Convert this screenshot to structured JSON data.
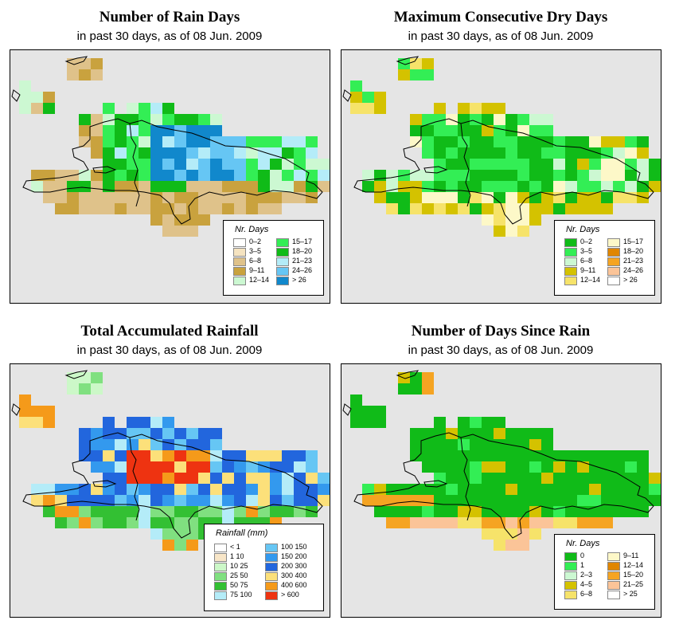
{
  "panels": [
    {
      "title": "Number of Rain Days",
      "subtitle": "in past 30 days, as of  08 Jun. 2009",
      "legend": {
        "title": "Nr. Days",
        "items": [
          {
            "label": "0–2",
            "color": "#ffffff"
          },
          {
            "label": "3–5",
            "color": "#f5e3c0"
          },
          {
            "label": "6–8",
            "color": "#dfc28a"
          },
          {
            "label": "9–11",
            "color": "#c9a23e"
          },
          {
            "label": "12–14",
            "color": "#ccf8d2"
          },
          {
            "label": "15–17",
            "color": "#33ee55"
          },
          {
            "label": "18–20",
            "color": "#10bb18"
          },
          {
            "label": "21–23",
            "color": "#b4ecf8"
          },
          {
            "label": "24–26",
            "color": "#66c6f4"
          },
          {
            "label": "> 26",
            "color": "#1188cc"
          }
        ]
      }
    },
    {
      "title": "Maximum Consecutive Dry Days",
      "subtitle": "in past 30 days, as of  08 Jun. 2009",
      "legend": {
        "title": "Nr. Days",
        "items": [
          {
            "label": "0–2",
            "color": "#10bb18"
          },
          {
            "label": "3–5",
            "color": "#33ee55"
          },
          {
            "label": "6–8",
            "color": "#ccf8d2"
          },
          {
            "label": "9–11",
            "color": "#d4c200"
          },
          {
            "label": "12–14",
            "color": "#f6e36a"
          },
          {
            "label": "15–17",
            "color": "#fdf8c8"
          },
          {
            "label": "18–20",
            "color": "#e08600"
          },
          {
            "label": "21–23",
            "color": "#f5a422"
          },
          {
            "label": "24–26",
            "color": "#fbc498"
          },
          {
            "label": "> 26",
            "color": "#ffffff"
          }
        ]
      }
    },
    {
      "title": "Total Accumulated Rainfall",
      "subtitle": "in past 30 days, as of  08 Jun. 2009",
      "legend": {
        "title": "Rainfall (mm)",
        "items": [
          {
            "label": "< 1",
            "color": "#ffffff"
          },
          {
            "label": "1    10",
            "color": "#f8e6c8"
          },
          {
            "label": "10    25",
            "color": "#ccf8c8"
          },
          {
            "label": "25    50",
            "color": "#80e080"
          },
          {
            "label": "50    75",
            "color": "#33c033"
          },
          {
            "label": "75   100",
            "color": "#b4ecf8"
          },
          {
            "label": "100   150",
            "color": "#66c6f4"
          },
          {
            "label": "150   200",
            "color": "#3399ee"
          },
          {
            "label": "200   300",
            "color": "#2266dd"
          },
          {
            "label": "300   400",
            "color": "#fce07a"
          },
          {
            "label": "400   600",
            "color": "#f59a1a"
          },
          {
            "label": "> 600",
            "color": "#ee3311"
          }
        ]
      }
    },
    {
      "title": "Number of Days Since Rain",
      "subtitle": "in past 30 days, as of  08 Jun. 2009",
      "legend": {
        "title": "Nr. Days",
        "items": [
          {
            "label": "0",
            "color": "#10bb18"
          },
          {
            "label": "1",
            "color": "#33ee55"
          },
          {
            "label": "2–3",
            "color": "#ccf8d2"
          },
          {
            "label": "4–5",
            "color": "#d4c200"
          },
          {
            "label": "6–8",
            "color": "#f6e36a"
          },
          {
            "label": "9–11",
            "color": "#fdf8c8"
          },
          {
            "label": "12–14",
            "color": "#e08600"
          },
          {
            "label": "15–20",
            "color": "#f5a422"
          },
          {
            "label": "21–25",
            "color": "#fbc498"
          },
          {
            "label": "> 25",
            "color": "#ffffff"
          }
        ]
      }
    }
  ]
}
